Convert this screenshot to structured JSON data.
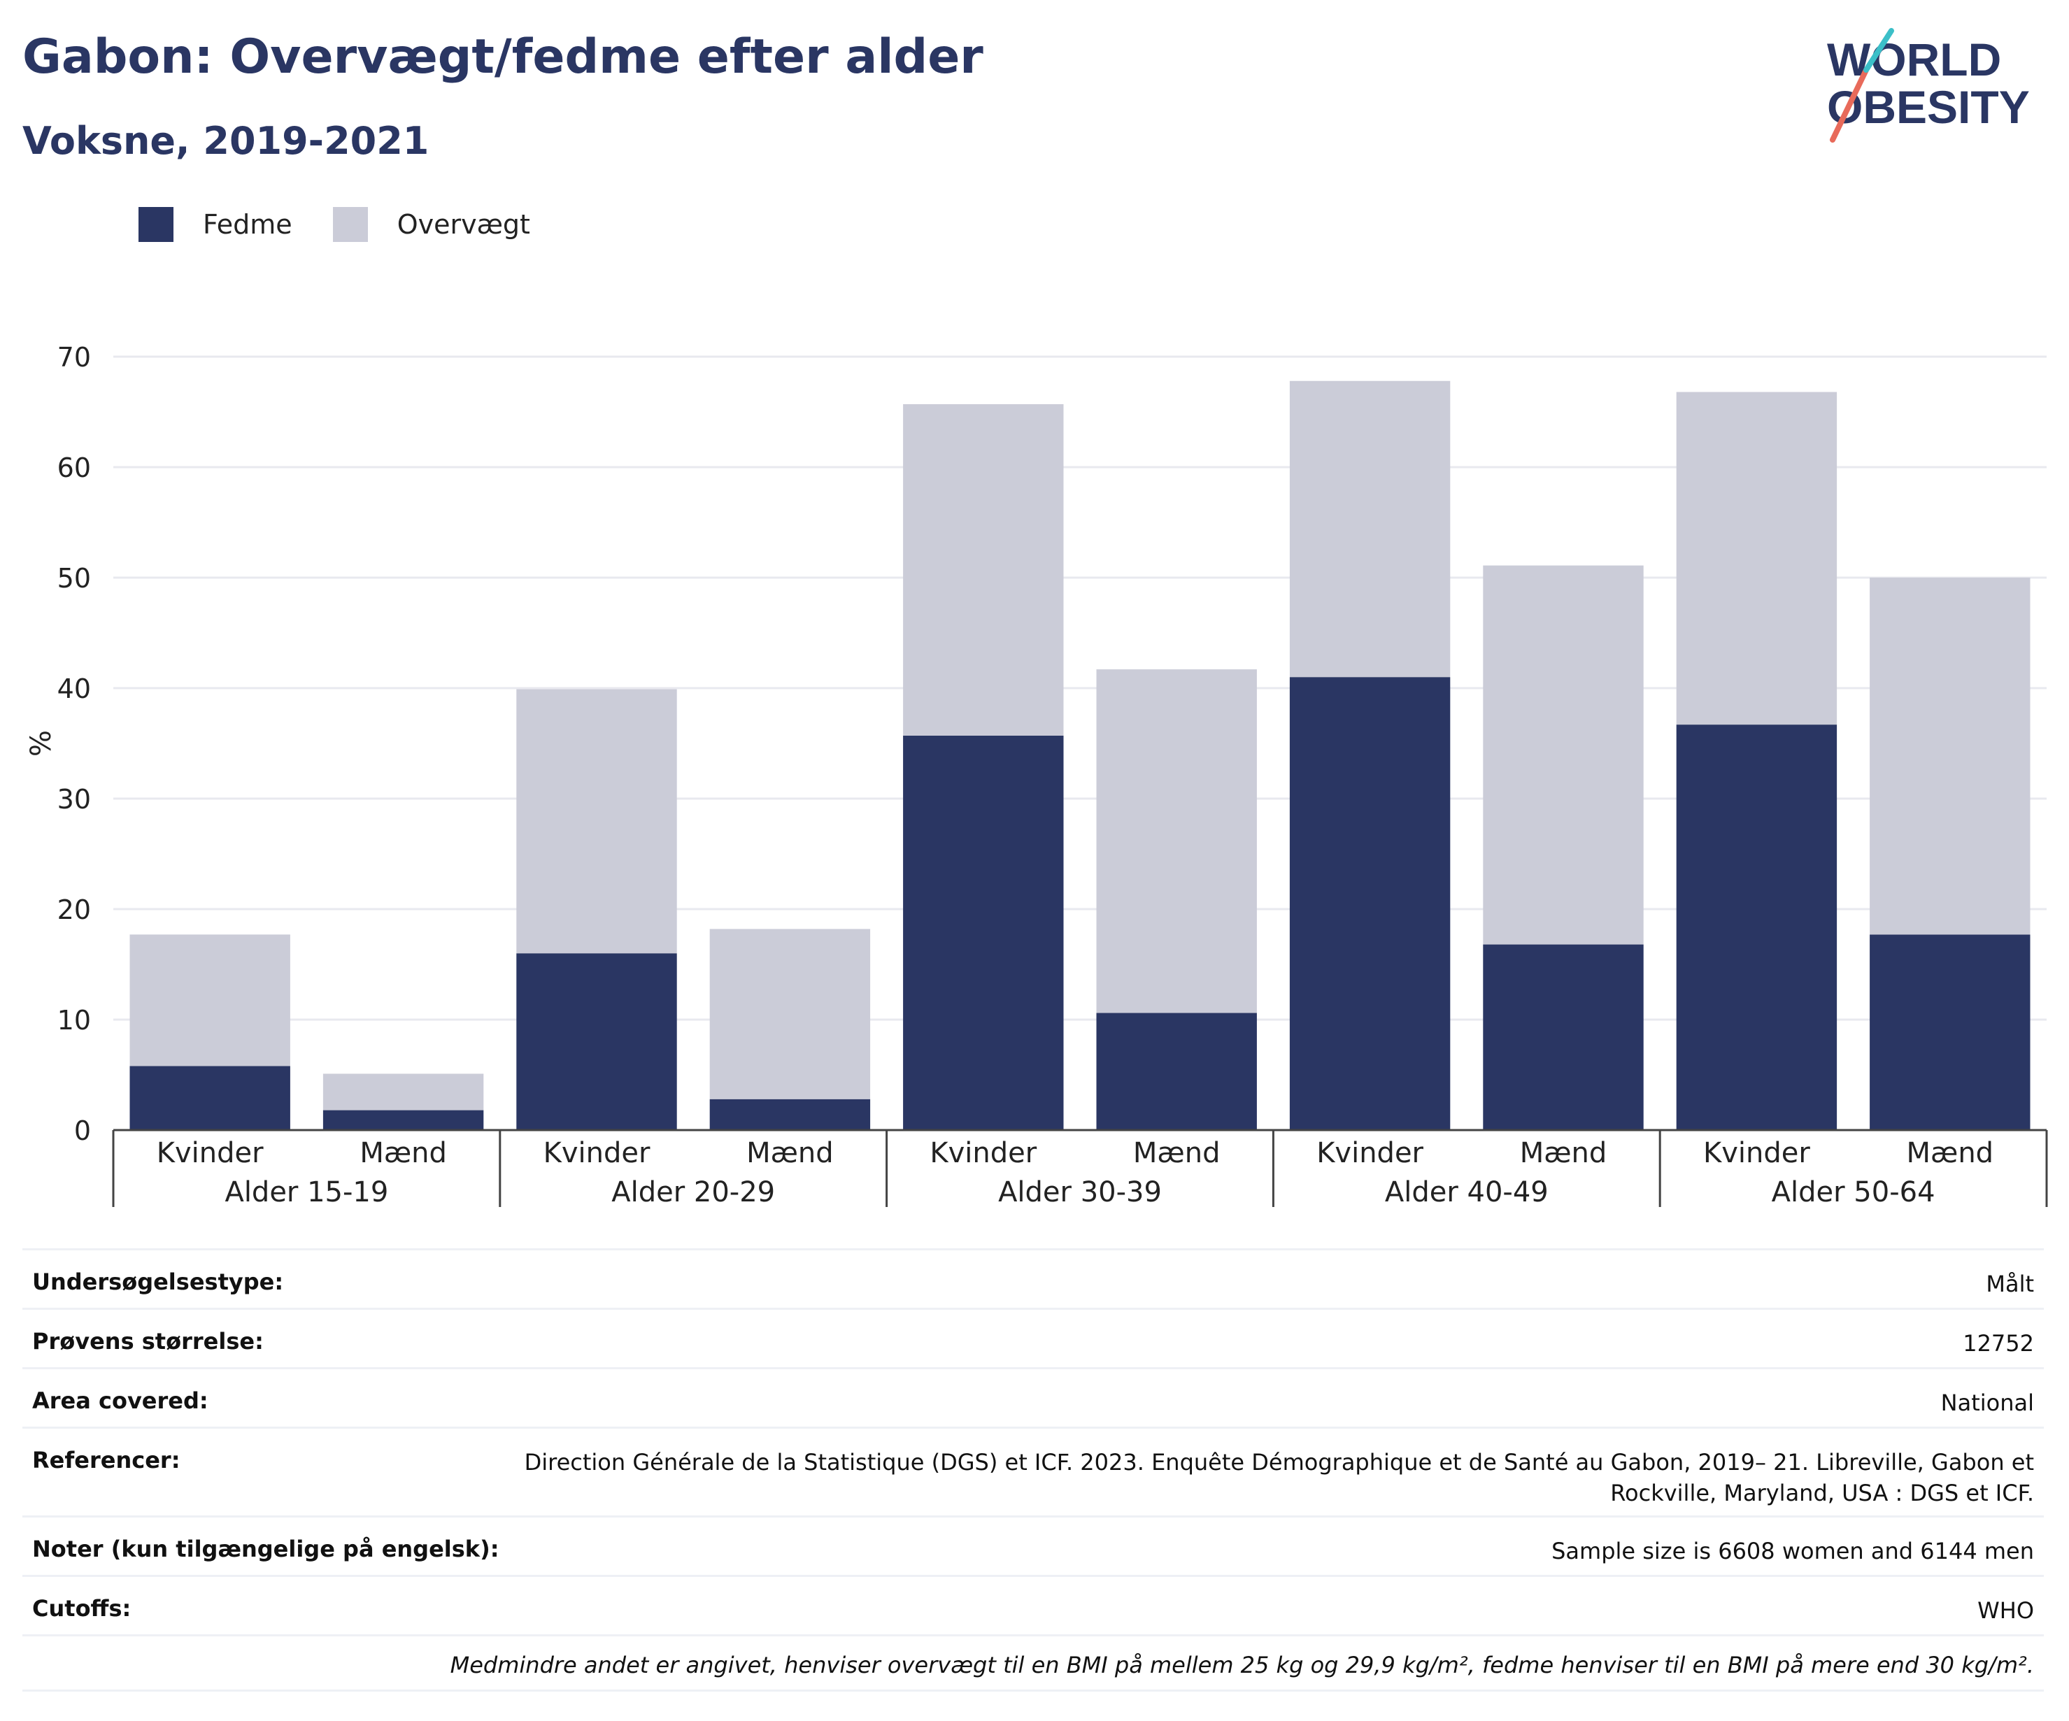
{
  "header": {
    "title": "Gabon: Overvægt/fedme efter alder",
    "subtitle": "Voksne, 2019-2021"
  },
  "logo": {
    "line1": "WORLD",
    "line2": "OBESITY"
  },
  "legend": [
    {
      "label": "Fedme",
      "color": "#2a3663"
    },
    {
      "label": "Overvægt",
      "color": "#cbccd8"
    }
  ],
  "chart_data": {
    "type": "bar",
    "stacked": true,
    "ylabel": "%",
    "ylim": [
      0,
      70
    ],
    "yticks": [
      0,
      10,
      20,
      30,
      40,
      50,
      60,
      70
    ],
    "grid": true,
    "groups": [
      "Alder 15-19",
      "Alder 20-29",
      "Alder 30-39",
      "Alder 40-49",
      "Alder 50-64"
    ],
    "categories": [
      "Kvinder",
      "Mænd",
      "Kvinder",
      "Mænd",
      "Kvinder",
      "Mænd",
      "Kvinder",
      "Mænd",
      "Kvinder",
      "Mænd"
    ],
    "series": [
      {
        "name": "Fedme",
        "color": "#2a3663",
        "values": [
          5.8,
          1.8,
          16.0,
          2.8,
          35.7,
          10.6,
          41.0,
          16.8,
          36.7,
          17.7
        ]
      },
      {
        "name": "Overvægt",
        "color": "#cbccd8",
        "values": [
          11.9,
          3.3,
          23.9,
          15.4,
          30.0,
          31.1,
          26.8,
          34.3,
          30.1,
          32.3
        ]
      }
    ]
  },
  "info": {
    "rows": [
      {
        "key": "Undersøgelsestype:",
        "value": "Målt"
      },
      {
        "key": "Prøvens størrelse:",
        "value": "12752"
      },
      {
        "key": "Area covered:",
        "value": "National"
      },
      {
        "key": "Referencer:",
        "value": "Direction Générale de la Statistique (DGS) et ICF. 2023. Enquête Démographique et de Santé au Gabon, 2019– 21. Libreville, Gabon et Rockville, Maryland, USA : DGS et ICF."
      },
      {
        "key": "Noter (kun tilgængelige på engelsk):",
        "value": "Sample size is 6608 women and 6144 men"
      },
      {
        "key": "Cutoffs:",
        "value": "WHO"
      }
    ],
    "note": "Medmindre andet er angivet, henviser overvægt til en BMI på mellem 25 kg og 29,9 kg/m², fedme henviser til en BMI på mere end 30 kg/m²."
  }
}
